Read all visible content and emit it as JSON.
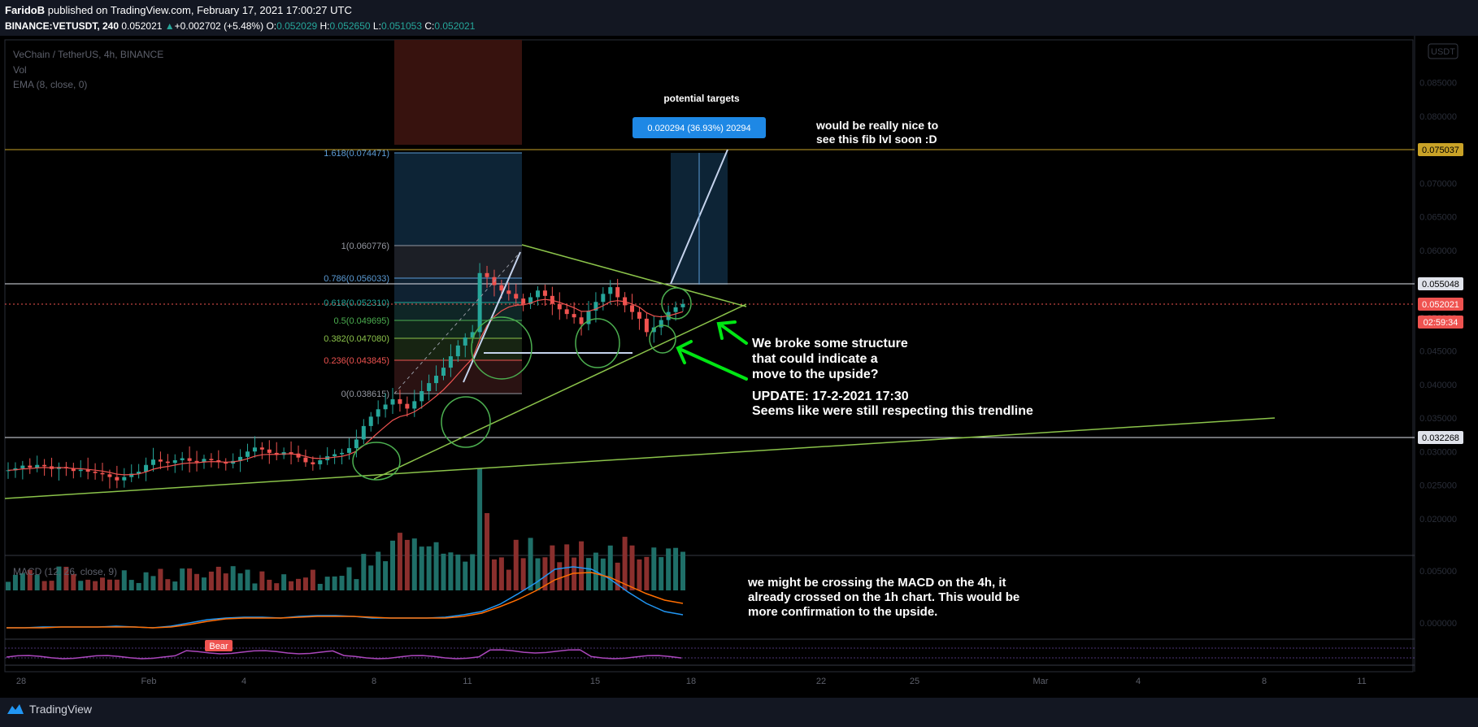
{
  "header": {
    "author": "FaridoB",
    "published": "published on TradingView.com, February 17, 2021 17:00:27 UTC",
    "symbol": "BINANCE:VETUSDT, 240",
    "last": "0.052021",
    "change": "+0.002702 (+5.48%)",
    "o_label": "O:",
    "o": "0.052029",
    "h_label": "H:",
    "h": "0.052650",
    "l_label": "L:",
    "l": "0.051053",
    "c_label": "C:",
    "c": "0.052021"
  },
  "legend": {
    "title": "VeChain / TetherUS, 4h, BINANCE",
    "vol": "Vol",
    "ema": "EMA (8, close, 0)",
    "macd": "MACD (12, 26, close, 9)"
  },
  "price_axis": {
    "currency": "USDT",
    "ticks": [
      "0.085000",
      "0.080000",
      "0.075000",
      "0.070000",
      "0.065000",
      "0.060000",
      "0.055000",
      "0.050000",
      "0.045000",
      "0.040000",
      "0.035000",
      "0.030000",
      "0.025000",
      "0.020000",
      "0.015000"
    ],
    "badges": [
      {
        "label": "0.075037",
        "color": "#c9a227",
        "text_color": "#000000"
      },
      {
        "label": "0.055048",
        "color": "#e0e3eb",
        "text_color": "#000000"
      },
      {
        "label": "0.052021",
        "color": "#ef5350",
        "text_color": "#ffffff"
      },
      {
        "label": "02:59:34",
        "color": "#ef5350",
        "text_color": "#ffffff"
      },
      {
        "label": "0.032268",
        "color": "#e0e3eb",
        "text_color": "#000000"
      }
    ],
    "macd_ticks": [
      "0.005000",
      "0.000000"
    ]
  },
  "time_axis": [
    "28",
    "Feb",
    "4",
    "8",
    "11",
    "15",
    "18",
    "22",
    "25",
    "Mar",
    "4",
    "8",
    "11"
  ],
  "fib_levels": [
    {
      "label": "1.618(0.074471)",
      "color": "#5b9bd5"
    },
    {
      "label": "1(0.060776)",
      "color": "#9598a1"
    },
    {
      "label": "0.786(0.056033)",
      "color": "#5b9bd5"
    },
    {
      "label": "0.618(0.052310)",
      "color": "#26a69a"
    },
    {
      "label": "0.5(0.049695)",
      "color": "#4caf50"
    },
    {
      "label": "0.382(0.047080)",
      "color": "#8bc34a"
    },
    {
      "label": "0.236(0.043845)",
      "color": "#ef5350"
    },
    {
      "label": "0(0.038615)",
      "color": "#9598a1"
    }
  ],
  "annotations": {
    "targets_title": "potential targets",
    "target_box": "0.020294 (36.93%) 20294",
    "fib_note_1": "would be really nice to",
    "fib_note_2": "see this fib lvl soon :D",
    "structure_1": "We broke some structure",
    "structure_2": "that could indicate a",
    "structure_3": "move to the upside?",
    "update_1": "UPDATE: 17-2-2021 17:30",
    "update_2": "Seems like were still respecting this trendline",
    "macd_1": "we might be crossing the MACD on the 4h, it",
    "macd_2": "already crossed on the 1h chart. This would be",
    "macd_3": "more confirmation to the upside.",
    "bear": "Bear"
  },
  "footer": {
    "brand": "TradingView"
  },
  "colors": {
    "up": "#26a69a",
    "down": "#ef5350",
    "ema": "#ef5350",
    "trend": "#8bc34a",
    "macd": "#2196f3",
    "signal": "#ff6d00",
    "rsi": "#ab47bc",
    "white_line": "#e0e3eb"
  },
  "chart_data": {
    "type": "line",
    "title": "VeChain / TetherUS, 4h, BINANCE",
    "ylim": [
      0.015,
      0.088
    ],
    "x_ticks": [
      "28",
      "Feb",
      "4",
      "8",
      "11",
      "15",
      "18",
      "22",
      "25",
      "Mar",
      "4",
      "8",
      "11"
    ],
    "series": [
      {
        "values": [
          0.0272,
          0.0275,
          0.0279,
          0.0276,
          0.028,
          0.0278,
          0.0274,
          0.0277,
          0.0275,
          0.0271,
          0.0273,
          0.027,
          0.0268,
          0.0266,
          0.0262,
          0.0257,
          0.0262,
          0.0267,
          0.027,
          0.028,
          0.0288,
          0.0285,
          0.0283,
          0.0287,
          0.029,
          0.0286,
          0.0284,
          0.0289,
          0.0287,
          0.0284,
          0.0282,
          0.0286,
          0.0292,
          0.03,
          0.0306,
          0.0303,
          0.0298,
          0.0295,
          0.0299,
          0.0297,
          0.0291,
          0.0284,
          0.0281,
          0.0287,
          0.0293,
          0.0296,
          0.0298,
          0.0305,
          0.0318,
          0.0338,
          0.0352,
          0.0363,
          0.037,
          0.0378,
          0.0371,
          0.0364,
          0.0375,
          0.039,
          0.0402,
          0.0413,
          0.0425,
          0.0442,
          0.0458,
          0.047,
          0.0478,
          0.0566,
          0.056,
          0.0548,
          0.054,
          0.0535,
          0.0528,
          0.052,
          0.053,
          0.054,
          0.0532,
          0.052,
          0.0512,
          0.0505,
          0.05,
          0.049,
          0.051,
          0.0523,
          0.0535,
          0.0545,
          0.053,
          0.0518,
          0.0508,
          0.0498,
          0.0478,
          0.0485,
          0.0496,
          0.0508,
          0.0515,
          0.052
        ]
      }
    ],
    "levels": [
      0.075037,
      0.055048,
      0.052021,
      0.032268
    ]
  }
}
